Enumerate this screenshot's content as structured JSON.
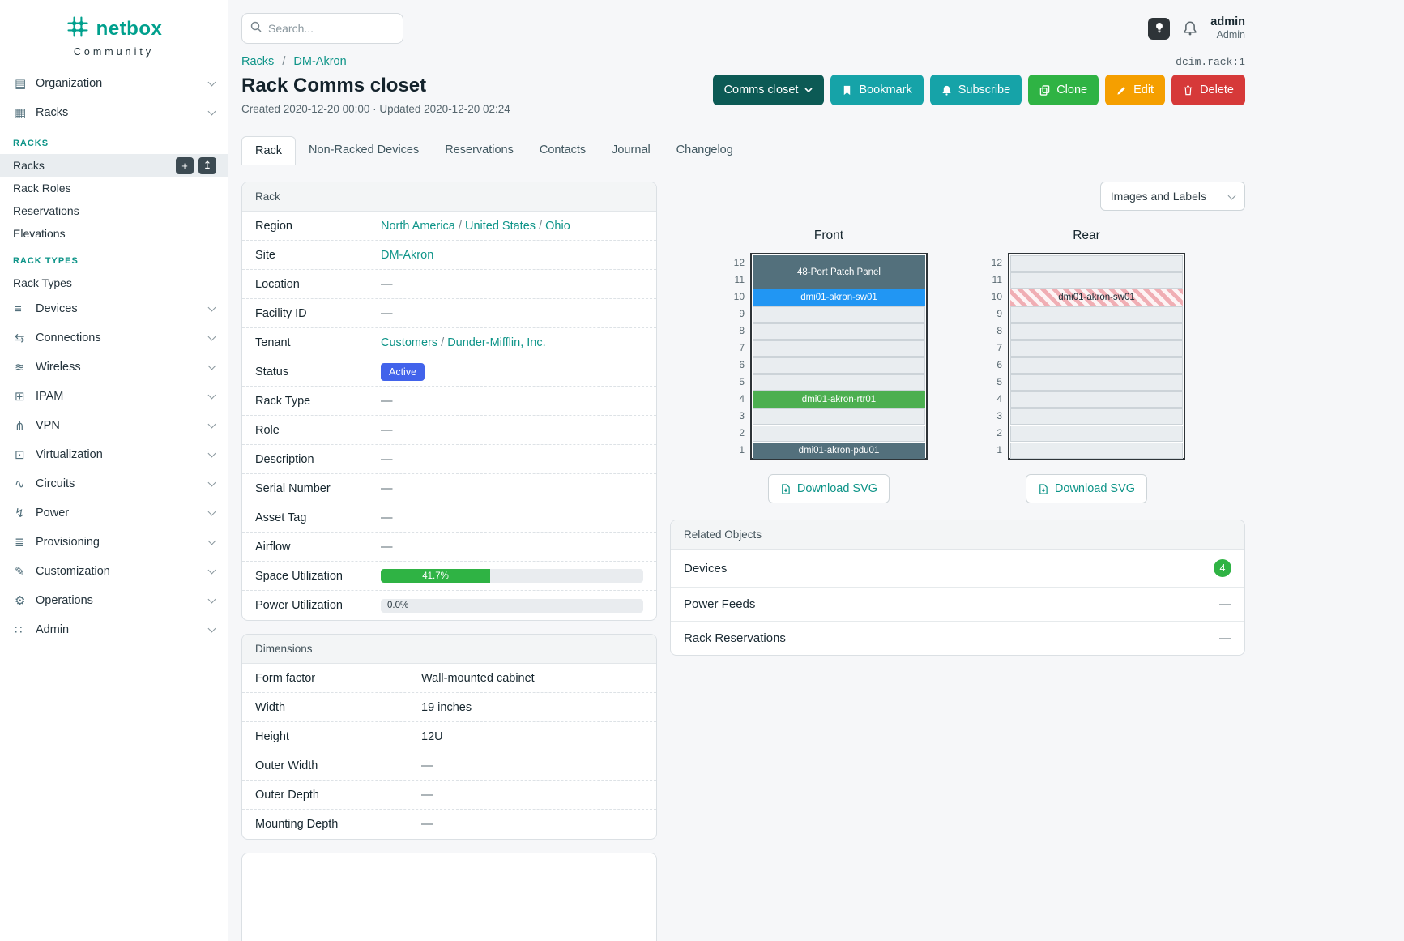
{
  "ui": {
    "dash": "—"
  },
  "brand": {
    "name": "netbox",
    "tagline": "Community"
  },
  "topbar": {
    "search_placeholder": "Search...",
    "user_name": "admin",
    "user_role": "Admin"
  },
  "sidebar": {
    "items": [
      {
        "label": "Organization",
        "icon": "organization-icon",
        "glyph": "▤"
      },
      {
        "label": "Racks",
        "icon": "racks-icon",
        "glyph": "▦",
        "groups": [
          {
            "heading": "RACKS",
            "items": [
              {
                "label": "Racks",
                "active": true,
                "buttons": [
                  {
                    "name": "add-button",
                    "glyph": "+"
                  },
                  {
                    "name": "import-button",
                    "glyph": "↥"
                  }
                ]
              },
              {
                "label": "Rack Roles"
              },
              {
                "label": "Reservations"
              },
              {
                "label": "Elevations"
              }
            ]
          },
          {
            "heading": "RACK TYPES",
            "items": [
              {
                "label": "Rack Types"
              }
            ]
          }
        ]
      },
      {
        "label": "Devices",
        "icon": "devices-icon",
        "glyph": "≡"
      },
      {
        "label": "Connections",
        "icon": "connections-icon",
        "glyph": "⇆"
      },
      {
        "label": "Wireless",
        "icon": "wireless-icon",
        "glyph": "≋"
      },
      {
        "label": "IPAM",
        "icon": "ipam-icon",
        "glyph": "⊞"
      },
      {
        "label": "VPN",
        "icon": "vpn-icon",
        "glyph": "⋔"
      },
      {
        "label": "Virtualization",
        "icon": "virtualization-icon",
        "glyph": "⊡"
      },
      {
        "label": "Circuits",
        "icon": "circuits-icon",
        "glyph": "∿"
      },
      {
        "label": "Power",
        "icon": "power-icon",
        "glyph": "↯"
      },
      {
        "label": "Provisioning",
        "icon": "provisioning-icon",
        "glyph": "≣"
      },
      {
        "label": "Customization",
        "icon": "customization-icon",
        "glyph": "✎"
      },
      {
        "label": "Operations",
        "icon": "operations-icon",
        "glyph": "⚙"
      },
      {
        "label": "Admin",
        "icon": "admin-icon",
        "glyph": "∷"
      }
    ]
  },
  "breadcrumb": {
    "items": [
      "Racks",
      "DM-Akron"
    ],
    "separator": "/"
  },
  "page": {
    "title": "Rack Comms closet",
    "meta": "Created 2020-12-20 00:00 · Updated 2020-12-20 02:24",
    "object_id": "dcim.rack:1"
  },
  "actions": [
    {
      "label": "Comms closet",
      "kind": "dropdown",
      "name": "comms-closet-dropdown"
    },
    {
      "label": "Bookmark",
      "kind": "teal",
      "name": "bookmark-button",
      "icon": "bookmark"
    },
    {
      "label": "Subscribe",
      "kind": "teal",
      "name": "subscribe-button",
      "icon": "bell"
    },
    {
      "label": "Clone",
      "kind": "green",
      "name": "clone-button",
      "icon": "copy"
    },
    {
      "label": "Edit",
      "kind": "orange",
      "name": "edit-button",
      "icon": "pencil"
    },
    {
      "label": "Delete",
      "kind": "red",
      "name": "delete-button",
      "icon": "trash"
    }
  ],
  "tabs": [
    {
      "label": "Rack",
      "active": true
    },
    {
      "label": "Non-Racked Devices"
    },
    {
      "label": "Reservations"
    },
    {
      "label": "Contacts"
    },
    {
      "label": "Journal"
    },
    {
      "label": "Changelog"
    }
  ],
  "rack_card": {
    "title": "Rack",
    "rows": [
      {
        "label": "Region",
        "kind": "links",
        "links": [
          "North America",
          "United States",
          "Ohio"
        ]
      },
      {
        "label": "Site",
        "kind": "links",
        "links": [
          "DM-Akron"
        ]
      },
      {
        "label": "Location",
        "kind": "dash"
      },
      {
        "label": "Facility ID",
        "kind": "dash"
      },
      {
        "label": "Tenant",
        "kind": "links",
        "links": [
          "Customers",
          "Dunder-Mifflin, Inc."
        ]
      },
      {
        "label": "Status",
        "kind": "badge",
        "value": "Active"
      },
      {
        "label": "Rack Type",
        "kind": "dash"
      },
      {
        "label": "Role",
        "kind": "dash"
      },
      {
        "label": "Description",
        "kind": "dash"
      },
      {
        "label": "Serial Number",
        "kind": "dash"
      },
      {
        "label": "Asset Tag",
        "kind": "dash"
      },
      {
        "label": "Airflow",
        "kind": "dash"
      },
      {
        "label": "Space Utilization",
        "kind": "progress",
        "value": "41.7%",
        "pct": 41.7
      },
      {
        "label": "Power Utilization",
        "kind": "progress_empty",
        "value": "0.0%",
        "pct": 0
      }
    ]
  },
  "dimensions_card": {
    "title": "Dimensions",
    "rows": [
      {
        "label": "Form factor",
        "kind": "text",
        "value": "Wall-mounted cabinet"
      },
      {
        "label": "Width",
        "kind": "text",
        "value": "19 inches"
      },
      {
        "label": "Height",
        "kind": "text",
        "value": "12U"
      },
      {
        "label": "Outer Width",
        "kind": "dash"
      },
      {
        "label": "Outer Depth",
        "kind": "dash"
      },
      {
        "label": "Mounting Depth",
        "kind": "dash"
      }
    ]
  },
  "elevations": {
    "control_label": "Images and Labels",
    "download_label": "Download SVG",
    "units": [
      12,
      11,
      10,
      9,
      8,
      7,
      6,
      5,
      4,
      3,
      2,
      1
    ],
    "views": [
      {
        "title": "Front",
        "devices": [
          {
            "top_unit": 12,
            "span": 2,
            "label": "48-Port Patch Panel",
            "style": "dark"
          },
          {
            "top_unit": 10,
            "span": 1,
            "label": "dmi01-akron-sw01",
            "style": "blue"
          },
          {
            "top_unit": 4,
            "span": 1,
            "label": "dmi01-akron-rtr01",
            "style": "green"
          },
          {
            "top_unit": 1,
            "span": 1,
            "label": "dmi01-akron-pdu01",
            "style": "dark"
          }
        ]
      },
      {
        "title": "Rear",
        "devices": [
          {
            "top_unit": 10,
            "span": 1,
            "label": "dmi01-akron-sw01",
            "style": "hatched"
          }
        ]
      }
    ]
  },
  "related": {
    "title": "Related Objects",
    "rows": [
      {
        "label": "Devices",
        "kind": "count",
        "value": "4"
      },
      {
        "label": "Power Feeds",
        "kind": "dash"
      },
      {
        "label": "Rack Reservations",
        "kind": "dash"
      }
    ]
  },
  "colors": {
    "brand_teal": "#00a08d",
    "link_teal": "#0e9488",
    "button_teal": "#16a3a8",
    "button_dark_teal": "#0c5a55",
    "button_green": "#2fb344",
    "button_orange": "#f59f00",
    "button_red": "#d63939",
    "status_blue": "#4263eb",
    "progress_green": "#2fb344",
    "device_dark": "#53707c",
    "device_blue": "#2196f3",
    "device_green": "#4caf50"
  }
}
